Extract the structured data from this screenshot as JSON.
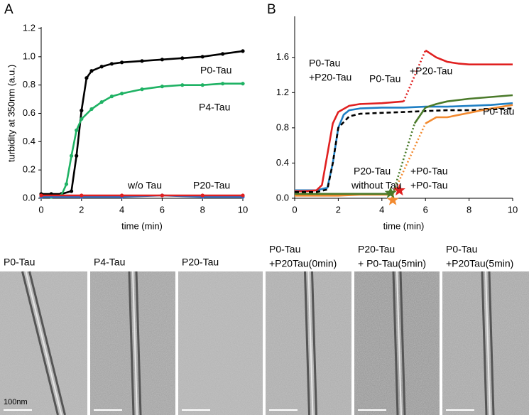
{
  "panel_labels": [
    "A",
    "B"
  ],
  "chart_data": [
    {
      "type": "line",
      "markers": true,
      "ylabel": "turbidity at 350nm (a.u.)",
      "xlabel": "time (min)",
      "xlim": [
        0,
        10
      ],
      "xticks": [
        0,
        2,
        4,
        6,
        8,
        10
      ],
      "ylim": [
        0,
        1.2
      ],
      "yticks": [
        {
          "value": 0,
          "label": "0.0"
        },
        0.2,
        0.4,
        0.6,
        0.8,
        {
          "value": 1,
          "label": "1.0"
        },
        1.2
      ],
      "series": [
        {
          "name": "P0-Tau",
          "color": "#000000",
          "dash": "solid",
          "x": [
            0,
            0.5,
            1,
            1.5,
            1.75,
            2,
            2.25,
            2.5,
            3,
            3.5,
            4,
            5,
            6,
            7,
            8,
            9,
            10
          ],
          "values": [
            0.03,
            0.03,
            0.03,
            0.05,
            0.3,
            0.62,
            0.85,
            0.9,
            0.93,
            0.95,
            0.96,
            0.97,
            0.98,
            0.99,
            1.0,
            1.02,
            1.04
          ]
        },
        {
          "name": "P4-Tau",
          "color": "#1fb264",
          "dash": "solid",
          "x": [
            0,
            0.5,
            1,
            1.25,
            1.5,
            1.75,
            2,
            2.5,
            3,
            3.5,
            4,
            5,
            6,
            7,
            8,
            9,
            10
          ],
          "values": [
            0.01,
            0.01,
            0.02,
            0.1,
            0.3,
            0.48,
            0.56,
            0.63,
            0.68,
            0.72,
            0.74,
            0.77,
            0.79,
            0.8,
            0.8,
            0.81,
            0.81
          ]
        },
        {
          "name": "w/o Tau",
          "color": "#2a6fc9",
          "dash": "solid",
          "x": [
            0,
            2,
            4,
            6,
            8,
            10
          ],
          "values": [
            0.01,
            0.01,
            0.01,
            0.02,
            0.01,
            0.01
          ]
        },
        {
          "name": "P20-Tau",
          "color": "#e02020",
          "dash": "solid",
          "x": [
            0,
            2,
            4,
            6,
            8,
            10
          ],
          "values": [
            0.02,
            0.02,
            0.02,
            0.02,
            0.02,
            0.02
          ]
        }
      ]
    },
    {
      "type": "line",
      "markers": false,
      "xlabel": "time (min)",
      "xlim": [
        0,
        10
      ],
      "xticks": [
        0,
        2,
        4,
        6,
        8,
        10
      ],
      "ylim": [
        0,
        2.05
      ],
      "yticks": [
        {
          "value": 0,
          "label": "0.0"
        },
        0.4,
        0.8,
        1.2,
        1.6
      ],
      "series": [
        {
          "color": "#1f7fc4",
          "dash": "solid",
          "x": [
            0,
            0.5,
            1,
            1.5,
            1.75,
            2,
            2.25,
            2.5,
            3,
            4,
            5,
            6,
            7,
            8,
            9,
            10
          ],
          "values": [
            0.09,
            0.09,
            0.09,
            0.12,
            0.4,
            0.8,
            0.95,
            1.0,
            1.02,
            1.03,
            1.03,
            1.04,
            1.04,
            1.05,
            1.06,
            1.08
          ]
        },
        {
          "color": "#e02020",
          "dash": "solid",
          "x": [
            0,
            0.5,
            1,
            1.25,
            1.5,
            1.75,
            2,
            2.5,
            3,
            4,
            5
          ],
          "values": [
            0.08,
            0.08,
            0.09,
            0.15,
            0.5,
            0.85,
            0.98,
            1.05,
            1.07,
            1.08,
            1.1
          ]
        },
        {
          "color": "#e02020",
          "dash": "dotted",
          "x": [
            5,
            6
          ],
          "values": [
            1.1,
            1.68
          ]
        },
        {
          "color": "#e02020",
          "dash": "solid",
          "x": [
            6,
            6.5,
            7,
            7.5,
            8,
            9,
            10
          ],
          "values": [
            1.68,
            1.6,
            1.55,
            1.53,
            1.52,
            1.52,
            1.52
          ]
        },
        {
          "color": "#000000",
          "dash": "dashed",
          "x": [
            0,
            1,
            1.5,
            1.75,
            2,
            2.5,
            3,
            4,
            5,
            6,
            7,
            8,
            9,
            10
          ],
          "values": [
            0.07,
            0.07,
            0.1,
            0.4,
            0.8,
            0.93,
            0.96,
            0.97,
            0.98,
            0.99,
            1.0,
            1.0,
            1.01,
            1.02
          ]
        },
        {
          "color": "#f28a30",
          "dash": "solid",
          "x": [
            0,
            1,
            2,
            3,
            4,
            4.5
          ],
          "values": [
            0.03,
            0.03,
            0.03,
            0.04,
            0.04,
            0.04
          ]
        },
        {
          "color": "#f28a30",
          "dash": "dotted",
          "x": [
            4.5,
            6
          ],
          "values": [
            0.04,
            0.85
          ]
        },
        {
          "color": "#f28a30",
          "dash": "solid",
          "x": [
            6,
            6.5,
            7,
            8,
            9,
            10
          ],
          "values": [
            0.85,
            0.92,
            0.92,
            0.97,
            1.02,
            1.06
          ]
        },
        {
          "color": "#4a7a2a",
          "dash": "solid",
          "x": [
            0,
            1,
            2,
            3,
            4,
            4.5
          ],
          "values": [
            0.05,
            0.05,
            0.05,
            0.05,
            0.05,
            0.05
          ]
        },
        {
          "color": "#4a7a2a",
          "dash": "dotted",
          "x": [
            4.5,
            5.5
          ],
          "values": [
            0.05,
            0.85
          ]
        },
        {
          "color": "#4a7a2a",
          "dash": "solid",
          "x": [
            5.5,
            6,
            6.5,
            7,
            8,
            9,
            10
          ],
          "values": [
            0.85,
            1.03,
            1.07,
            1.1,
            1.13,
            1.15,
            1.17
          ]
        }
      ],
      "stars": [
        {
          "color": "#f28a30",
          "x": 4.5,
          "y": -0.02
        },
        {
          "color": "#4a7a2a",
          "x": 4.4,
          "y": 0.06
        },
        {
          "color": "#e02020",
          "x": 4.8,
          "y": 0.09
        }
      ],
      "annotations": [
        {
          "text": "P0-Tau",
          "color": "#1f7fc4"
        },
        {
          "text": "+P20-Tau",
          "color": "#1f7fc4"
        },
        {
          "text": "P0-Tau",
          "color": "#e02020"
        },
        {
          "text": "+P20-Tau",
          "color": "#e02020"
        },
        {
          "text": "P0-Tau",
          "color": "#000000"
        },
        {
          "text": "P20-Tau",
          "color": "#f28a30"
        },
        {
          "text": "without Tau",
          "color": "#4a7a2a"
        },
        {
          "text": "+P0-Tau",
          "color": "#f28a30"
        },
        {
          "text": "+P0-Tau",
          "color": "#4a7a2a"
        }
      ]
    }
  ],
  "micrographs": [
    {
      "lines": [
        "P0-Tau"
      ],
      "color": "#000000"
    },
    {
      "lines": [
        "P4-Tau"
      ],
      "color": "#1fb264"
    },
    {
      "lines": [
        "P20-Tau"
      ],
      "color": "#e02020"
    },
    {
      "lines": [
        "P0-Tau",
        "+P20Tau(0min)"
      ],
      "color": "#1f7fc4"
    },
    {
      "lines": [
        "P20-Tau",
        "+ P0-Tau(5min)"
      ],
      "color": "#f28a30"
    },
    {
      "lines": [
        "P0-Tau",
        "+P20Tau(5min)"
      ],
      "color": "#e02020"
    }
  ],
  "scale_bar": "100nm"
}
